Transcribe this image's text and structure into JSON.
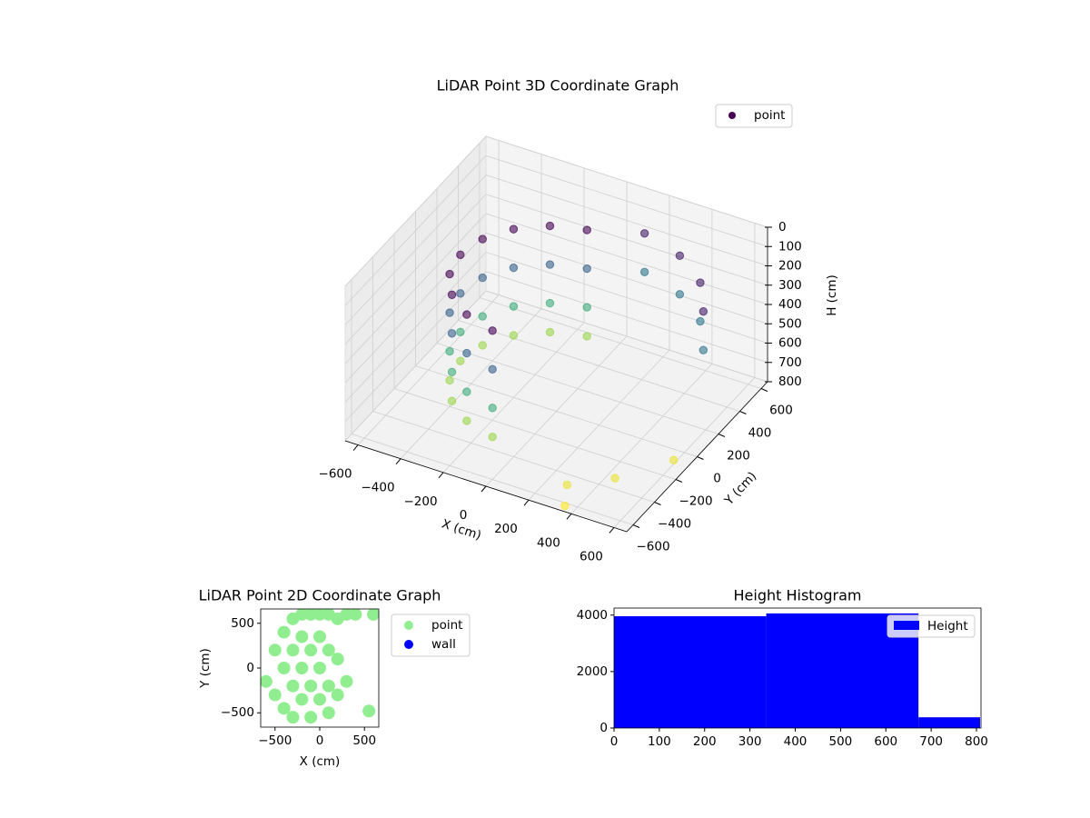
{
  "chart_data": [
    {
      "type": "scatter3d",
      "title": "LiDAR Point 3D Coordinate Graph",
      "xlabel": "X (cm)",
      "ylabel": "Y (cm)",
      "zlabel": "H (cm)",
      "xlim": [
        -660,
        660
      ],
      "ylim": [
        -660,
        660
      ],
      "zlim": [
        800,
        0
      ],
      "xticks": [
        {
          "value": -600,
          "label": "−600"
        },
        {
          "value": -400,
          "label": "−400"
        },
        {
          "value": -200,
          "label": "−200"
        },
        0,
        200,
        400,
        600
      ],
      "yticks": [
        {
          "value": -600,
          "label": "−600"
        },
        {
          "value": -400,
          "label": "−400"
        },
        {
          "value": -200,
          "label": "−200"
        },
        0,
        200,
        400,
        600
      ],
      "zticks": [
        0,
        100,
        200,
        300,
        400,
        500,
        600,
        700,
        800
      ],
      "legend": "upper right",
      "grid": true,
      "colormap": "viridis",
      "color_by": "z",
      "series": [
        {
          "name": "point",
          "color": "#440154",
          "x": [
            -78,
            -78,
            -78,
            -78,
            -225,
            -225,
            -225,
            -225,
            -345,
            -345,
            -345,
            -345,
            -423,
            -423,
            -423,
            -423,
            -450,
            -450,
            -450,
            -450,
            -423,
            -423,
            -423,
            -423,
            -345,
            -345,
            -345,
            -345,
            -225,
            -225,
            -225,
            -225,
            -78,
            -78,
            -78,
            -78,
            583,
            583,
            475,
            475,
            310,
            310,
            108,
            108,
            600,
            450,
            300,
            350
          ],
          "y": [
            443,
            443,
            443,
            443,
            390,
            390,
            390,
            390,
            289,
            289,
            289,
            289,
            154,
            154,
            154,
            154,
            0,
            0,
            0,
            0,
            -154,
            -154,
            -154,
            -154,
            -289,
            -289,
            -289,
            -289,
            -390,
            -390,
            -390,
            -390,
            -443,
            -443,
            -443,
            -443,
            212,
            212,
            399,
            399,
            537,
            537,
            611,
            611,
            -100,
            -350,
            -500,
            -620
          ],
          "z": [
            150,
            350,
            550,
            700,
            150,
            350,
            550,
            700,
            150,
            350,
            550,
            700,
            150,
            350,
            550,
            700,
            150,
            350,
            550,
            700,
            150,
            350,
            550,
            700,
            150,
            350,
            550,
            700,
            150,
            350,
            550,
            700,
            150,
            350,
            550,
            700,
            200,
            400,
            200,
            400,
            200,
            400,
            200,
            400,
            780,
            780,
            780,
            800
          ]
        }
      ]
    },
    {
      "type": "scatter",
      "title": "LiDAR Point 2D Coordinate Graph",
      "xlabel": "X (cm)",
      "ylabel": "Y (cm)",
      "xlim": [
        -660,
        660
      ],
      "ylim": [
        -660,
        660
      ],
      "xticks": [
        {
          "value": -500,
          "label": "−500"
        },
        0,
        500
      ],
      "yticks": [
        {
          "value": -500,
          "label": "−500"
        },
        0,
        500
      ],
      "legend": "outside right",
      "series": [
        {
          "name": "point",
          "color": "#90ee90",
          "x": [
            -600,
            -500,
            -500,
            -400,
            -400,
            -400,
            -300,
            -300,
            -300,
            -300,
            -200,
            -200,
            -200,
            -200,
            -100,
            -100,
            -100,
            -100,
            0,
            0,
            0,
            0,
            100,
            100,
            100,
            100,
            200,
            200,
            200,
            300,
            300,
            400,
            550,
            600
          ],
          "y": [
            -150,
            200,
            -300,
            400,
            0,
            -450,
            550,
            200,
            -200,
            -550,
            600,
            350,
            0,
            -350,
            600,
            200,
            -200,
            -550,
            600,
            350,
            0,
            -350,
            600,
            200,
            -200,
            -500,
            550,
            100,
            -300,
            600,
            -150,
            600,
            -480,
            600
          ]
        },
        {
          "name": "wall",
          "color": "#0000ff",
          "x": [],
          "y": []
        }
      ]
    },
    {
      "type": "histogram",
      "title": "Height Histogram",
      "xlim": [
        0,
        810
      ],
      "ylim": [
        0,
        4250
      ],
      "xticks": [
        0,
        100,
        200,
        300,
        400,
        500,
        600,
        700,
        800
      ],
      "yticks": [
        0,
        2000,
        4000
      ],
      "legend": "upper right",
      "bins": [
        0,
        336,
        672,
        808
      ],
      "series": [
        {
          "name": "Height",
          "color": "#0000ff",
          "values": [
            3960,
            4060,
            380
          ]
        }
      ]
    }
  ]
}
